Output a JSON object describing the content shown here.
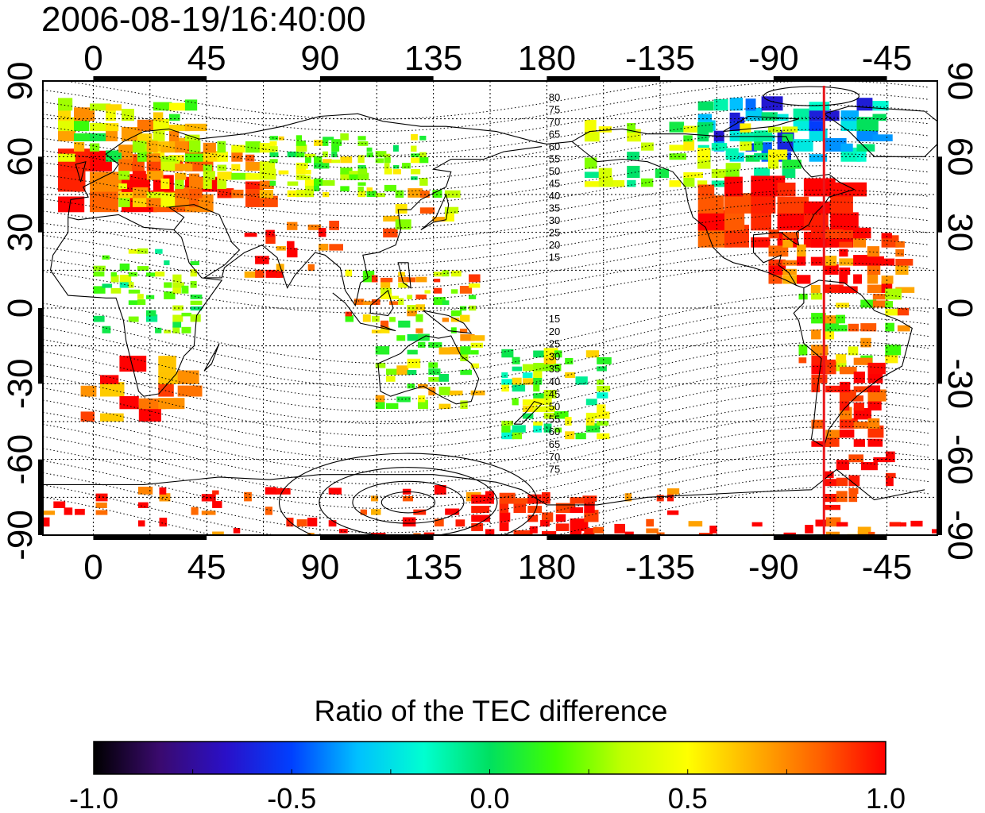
{
  "title": "2006-08-19/16:40:00",
  "map": {
    "lon_ticks": [
      {
        "lon": 0,
        "label": "0"
      },
      {
        "lon": 45,
        "label": "45"
      },
      {
        "lon": 90,
        "label": "90"
      },
      {
        "lon": 135,
        "label": "135"
      },
      {
        "lon": 180,
        "label": "180"
      },
      {
        "lon": 225,
        "label": "-135"
      },
      {
        "lon": 270,
        "label": "-90"
      },
      {
        "lon": 315,
        "label": "-45"
      }
    ],
    "lat_ticks": [
      {
        "lat": 90,
        "label": "90"
      },
      {
        "lat": 60,
        "label": "60"
      },
      {
        "lat": 30,
        "label": "30"
      },
      {
        "lat": 0,
        "label": "0"
      },
      {
        "lat": -30,
        "label": "-30"
      },
      {
        "lat": -60,
        "label": "-60"
      },
      {
        "lat": -90,
        "label": "-90"
      }
    ],
    "lon_range": [
      -20,
      335
    ],
    "lat_range": [
      -90,
      90
    ],
    "marker_line_lon": 290,
    "marker_line_color": "#e8161b",
    "contour_labels_north": [
      "80",
      "75",
      "70",
      "65",
      "60",
      "55",
      "50",
      "45",
      "40",
      "35",
      "30",
      "25",
      "20",
      "15"
    ],
    "contour_labels_south": [
      "15",
      "20",
      "25",
      "30",
      "35",
      "40",
      "45",
      "50",
      "55",
      "60",
      "65",
      "70",
      "75"
    ]
  },
  "colorbar": {
    "title": "Ratio of the TEC difference",
    "min": -1.0,
    "max": 1.0,
    "ticks": [
      {
        "value": -1.0,
        "label": "-1.0"
      },
      {
        "value": -0.5,
        "label": "-0.5"
      },
      {
        "value": 0.0,
        "label": "0.0"
      },
      {
        "value": 0.5,
        "label": "0.5"
      },
      {
        "value": 1.0,
        "label": "1.0"
      }
    ],
    "colors": [
      "#000000",
      "#3a0a6e",
      "#2a10c8",
      "#0040ff",
      "#00c0ff",
      "#00ffd0",
      "#00e060",
      "#40ff00",
      "#c0ff00",
      "#ffff00",
      "#ffb000",
      "#ff6000",
      "#ff0000"
    ]
  }
}
